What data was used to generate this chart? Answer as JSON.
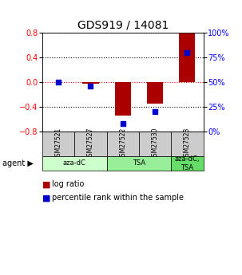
{
  "title": "GDS919 / 14081",
  "samples": [
    "GSM27521",
    "GSM27527",
    "GSM27522",
    "GSM27530",
    "GSM27523"
  ],
  "log_ratio": [
    0.0,
    -0.03,
    -0.55,
    -0.35,
    0.82
  ],
  "percentile_rank": [
    50,
    46,
    8,
    20,
    80
  ],
  "ylim_left": [
    -0.8,
    0.8
  ],
  "ylim_right": [
    0,
    100
  ],
  "yticks_left": [
    -0.8,
    -0.4,
    0.0,
    0.4,
    0.8
  ],
  "yticks_right": [
    0,
    25,
    50,
    75,
    100
  ],
  "ytick_labels_right": [
    "0%",
    "25%",
    "50%",
    "75%",
    "100%"
  ],
  "agent_groups": [
    {
      "label": "aza-dC",
      "span": [
        0,
        2
      ],
      "color": "#ccffcc"
    },
    {
      "label": "TSA",
      "span": [
        2,
        4
      ],
      "color": "#99ee99"
    },
    {
      "label": "aza-dC,\nTSA",
      "span": [
        4,
        5
      ],
      "color": "#66dd66"
    }
  ],
  "bar_color": "#aa0000",
  "dot_color": "#0000cc",
  "bar_width": 0.5,
  "dot_size": 25,
  "background_color": "#ffffff",
  "title_fontsize": 10,
  "tick_label_fontsize": 7,
  "legend_fontsize": 7,
  "sample_box_color": "#cccccc"
}
